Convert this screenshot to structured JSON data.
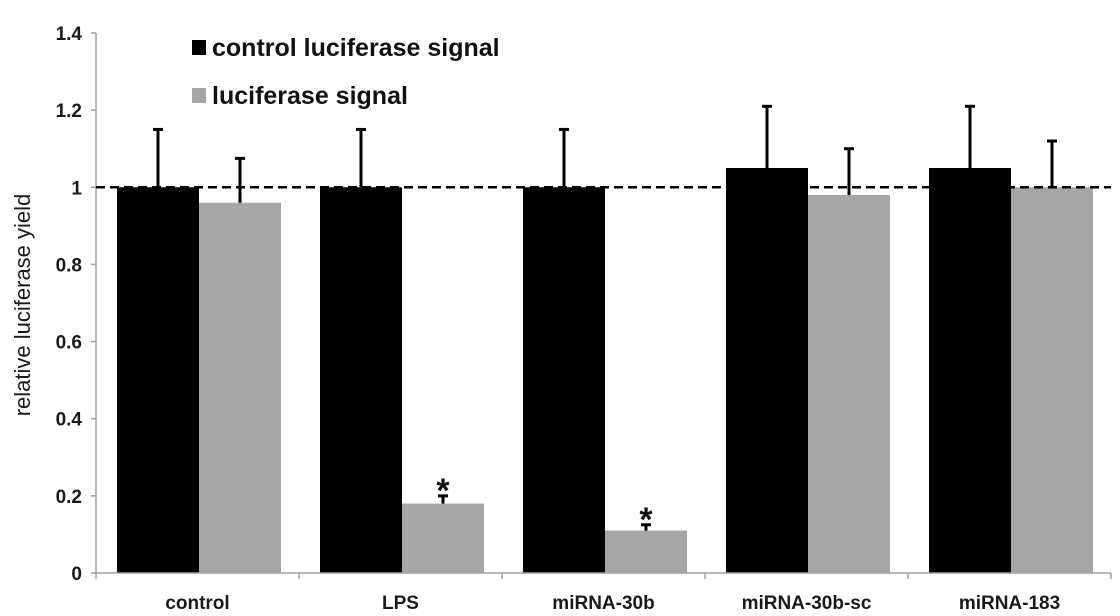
{
  "chart_data": {
    "type": "bar",
    "title": "",
    "xlabel": "",
    "ylabel": "relative luciferase yield",
    "ylim": [
      0,
      1.4
    ],
    "yticks": [
      "0",
      "0.2",
      "0.4",
      "0.6",
      "0.8",
      "1",
      "1.2",
      "1.4"
    ],
    "grid": false,
    "legend_position": "top-left",
    "reference_line": {
      "y": 1,
      "style": "dashed"
    },
    "categories": [
      "control",
      "LPS",
      "miRNA-30b",
      "miRNA-30b-sc",
      "miRNA-183"
    ],
    "series": [
      {
        "name": "control luciferase signal",
        "color": "#000000",
        "values": [
          1.0,
          1.0,
          1.0,
          1.05,
          1.05
        ],
        "error": [
          0.15,
          0.15,
          0.15,
          0.16,
          0.16
        ]
      },
      {
        "name": "luciferase signal",
        "color": "#a6a6a6",
        "values": [
          0.96,
          0.18,
          0.11,
          0.98,
          1.0
        ],
        "error": [
          0.115,
          0.02,
          0.015,
          0.12,
          0.12
        ]
      }
    ],
    "annotations": [
      {
        "text": "*",
        "category": "LPS",
        "series": "luciferase signal"
      },
      {
        "text": "*",
        "category": "miRNA-30b",
        "series": "luciferase signal"
      }
    ]
  }
}
